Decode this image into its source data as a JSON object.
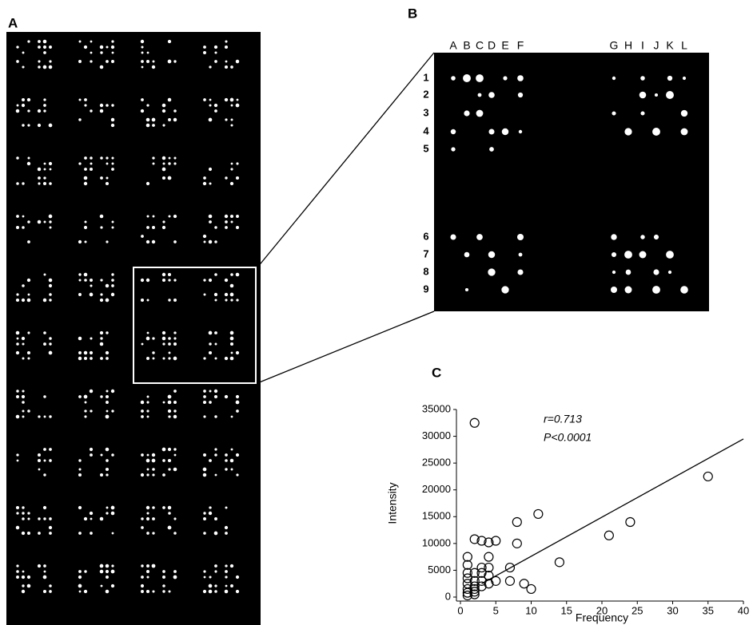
{
  "panels": [
    "A",
    "B",
    "C"
  ],
  "zoom": {
    "columns": [
      "A",
      "B",
      "C",
      "D",
      "E",
      "F",
      "G",
      "H",
      "I",
      "J",
      "K",
      "L"
    ],
    "rows": [
      "1",
      "2",
      "3",
      "4",
      "5",
      "6",
      "7",
      "8",
      "9"
    ]
  },
  "chart_data": {
    "type": "scatter",
    "x_label": "Frequency",
    "y_label": "Intensity",
    "annotations": [
      "r=0.713",
      "P<0.0001"
    ],
    "xlim": [
      0,
      40
    ],
    "ylim": [
      0,
      35000
    ],
    "xticks": [
      0,
      5,
      10,
      15,
      20,
      25,
      30,
      35,
      40
    ],
    "yticks": [
      0,
      5000,
      10000,
      15000,
      20000,
      25000,
      30000,
      35000
    ],
    "color": "#000000",
    "x": [
      2,
      1,
      1,
      1,
      1,
      1,
      1,
      1,
      1,
      2,
      2,
      2,
      2,
      2,
      2,
      2,
      3,
      3,
      3,
      3,
      3,
      4,
      4,
      4,
      4,
      4,
      5,
      5,
      7,
      7,
      8,
      8,
      9,
      10,
      11,
      14,
      21,
      24,
      35
    ],
    "values": [
      32500,
      7500,
      6000,
      4500,
      3500,
      2500,
      1500,
      800,
      300,
      10800,
      4500,
      3000,
      2000,
      1500,
      1000,
      500,
      10500,
      5500,
      4500,
      3000,
      2000,
      10200,
      7500,
      5500,
      4000,
      2500,
      10500,
      3000,
      5500,
      3000,
      14000,
      10000,
      2500,
      1500,
      15500,
      6500,
      11500,
      14000,
      22500
    ],
    "fit_line": {
      "x": [
        3,
        40
      ],
      "values": [
        2500,
        29500
      ]
    }
  }
}
